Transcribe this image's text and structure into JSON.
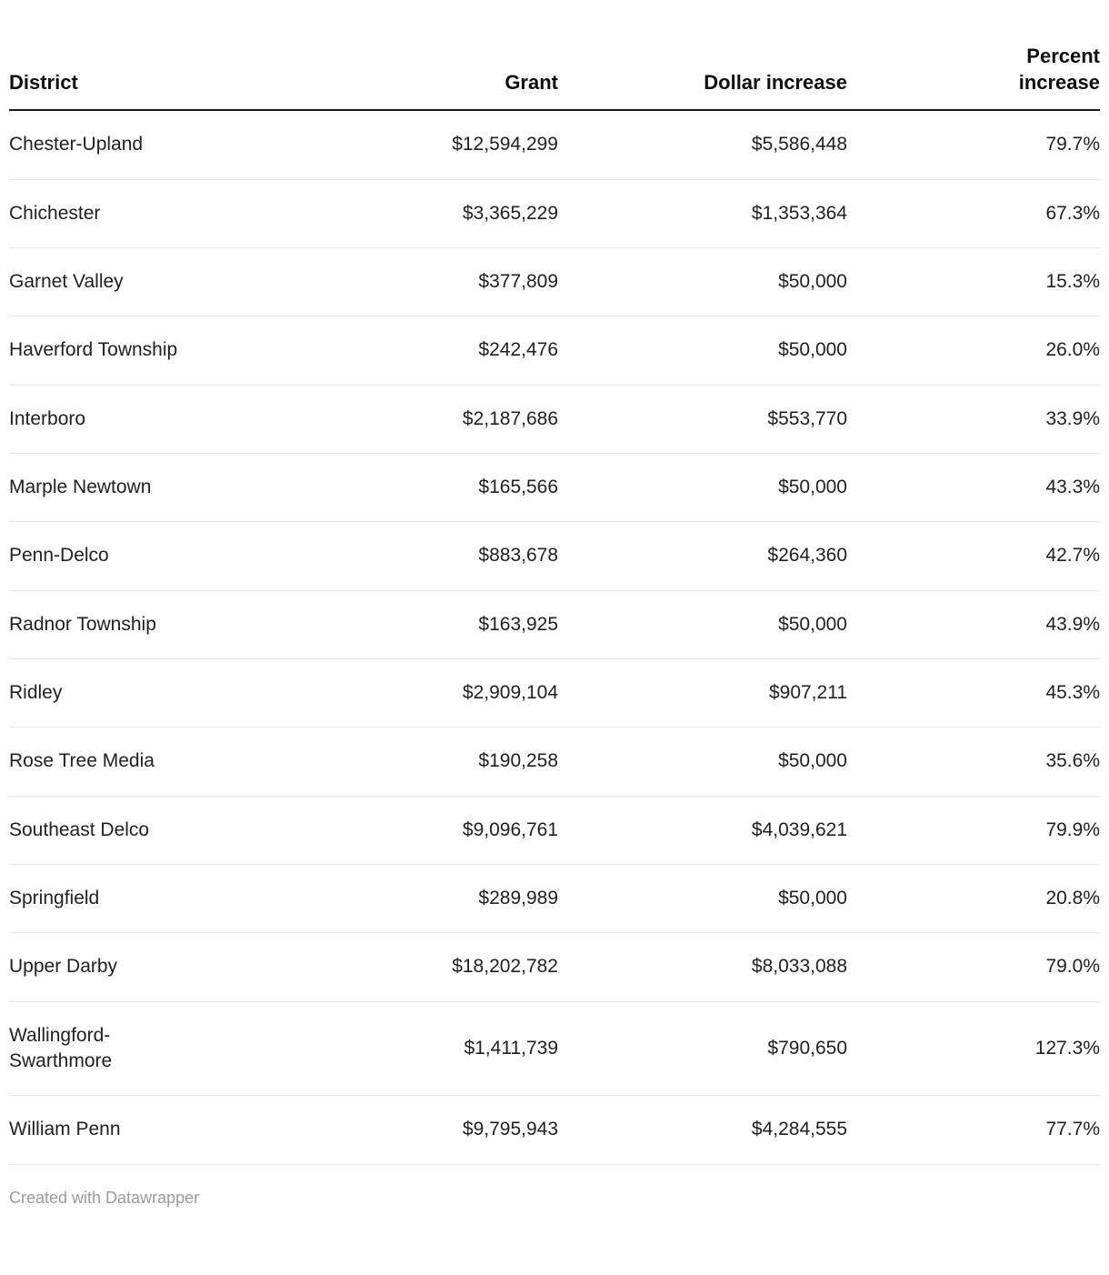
{
  "chart_data": {
    "type": "table",
    "columns": [
      "District",
      "Grant",
      "Dollar increase",
      "Percent increase"
    ],
    "rows": [
      [
        "Chester-Upland",
        "$12,594,299",
        "$5,586,448",
        "79.7%"
      ],
      [
        "Chichester",
        "$3,365,229",
        "$1,353,364",
        "67.3%"
      ],
      [
        "Garnet Valley",
        "$377,809",
        "$50,000",
        "15.3%"
      ],
      [
        "Haverford Township",
        "$242,476",
        "$50,000",
        "26.0%"
      ],
      [
        "Interboro",
        "$2,187,686",
        "$553,770",
        "33.9%"
      ],
      [
        "Marple Newtown",
        "$165,566",
        "$50,000",
        "43.3%"
      ],
      [
        "Penn-Delco",
        "$883,678",
        "$264,360",
        "42.7%"
      ],
      [
        "Radnor Township",
        "$163,925",
        "$50,000",
        "43.9%"
      ],
      [
        "Ridley",
        "$2,909,104",
        "$907,211",
        "45.3%"
      ],
      [
        "Rose Tree Media",
        "$190,258",
        "$50,000",
        "35.6%"
      ],
      [
        "Southeast Delco",
        "$9,096,761",
        "$4,039,621",
        "79.9%"
      ],
      [
        "Springfield",
        "$289,989",
        "$50,000",
        "20.8%"
      ],
      [
        "Upper Darby",
        "$18,202,782",
        "$8,033,088",
        "79.0%"
      ],
      [
        "Wallingford-Swarthmore",
        "$1,411,739",
        "$790,650",
        "127.3%"
      ],
      [
        "William Penn",
        "$9,795,943",
        "$4,284,555",
        "77.7%"
      ]
    ],
    "title": "",
    "layout": {
      "header_align": [
        "left",
        "right",
        "right",
        "right"
      ],
      "body_align": [
        "left",
        "right",
        "right",
        "right"
      ],
      "grid": "horizontal-dividers",
      "header_rule_color": "#1a1a1a",
      "divider_color": "#e7e7e7"
    }
  },
  "footer": {
    "credit": "Created with Datawrapper"
  },
  "colors": {
    "background": "#ffffff",
    "text": "#212124",
    "header_text": "#0f0f10",
    "footer_text": "#9b9b9b"
  }
}
